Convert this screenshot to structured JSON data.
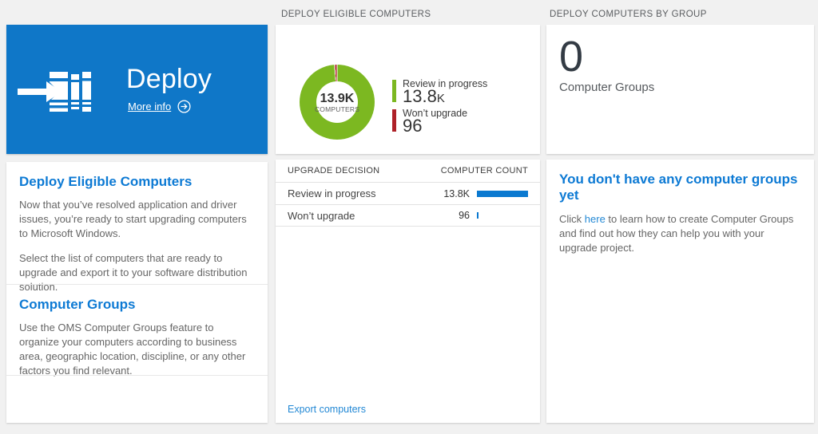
{
  "headers": {
    "middle": "DEPLOY ELIGIBLE COMPUTERS",
    "right": "DEPLOY COMPUTERS BY GROUP"
  },
  "tile": {
    "title": "Deploy",
    "more_info_label": "More info",
    "color": "#0f77c8",
    "icon": "deploy-arrow-into-stack"
  },
  "left_panel": {
    "section1": {
      "heading": "Deploy Eligible Computers",
      "p1": "Now that you’ve resolved application and driver issues, you’re ready to start upgrading computers to Microsoft Windows.",
      "p2": "Select the list of computers that are ready to upgrade and export it to your software distribution solution."
    },
    "section2": {
      "heading": "Computer Groups",
      "p1": "Use the OMS Computer Groups feature to organize your computers according to business area, geographic location, discipline, or any other factors you find relevant."
    }
  },
  "chart_data": {
    "type": "pie",
    "subtype": "donut",
    "title": "DEPLOY ELIGIBLE COMPUTERS",
    "center_value": "13.9K",
    "center_label": "COMPUTERS",
    "legend_position": "right",
    "slices": [
      {
        "label": "Review in progress",
        "value": 13800,
        "display_big": "13.8",
        "display_suffix": "K",
        "color": "#7cb821"
      },
      {
        "label": "Won’t upgrade",
        "value": 96,
        "display_big": "96",
        "display_suffix": "",
        "color": "#ae2128"
      }
    ]
  },
  "table": {
    "col_decision": "UPGRADE DECISION",
    "col_count": "COMPUTER COUNT",
    "bar_color": "#0b79d0",
    "rows": [
      {
        "label": "Review in progress",
        "display": "13.8K",
        "value": 13800
      },
      {
        "label": "Won’t upgrade",
        "display": "96",
        "value": 96
      }
    ],
    "export_label": "Export computers"
  },
  "groups": {
    "count": "0",
    "count_label": "Computer Groups",
    "empty_heading": "You don't have any computer groups yet",
    "empty_before": "Click ",
    "empty_link": "here",
    "empty_after": " to learn how to create Computer Groups and find out how they can help you with your upgrade project."
  }
}
